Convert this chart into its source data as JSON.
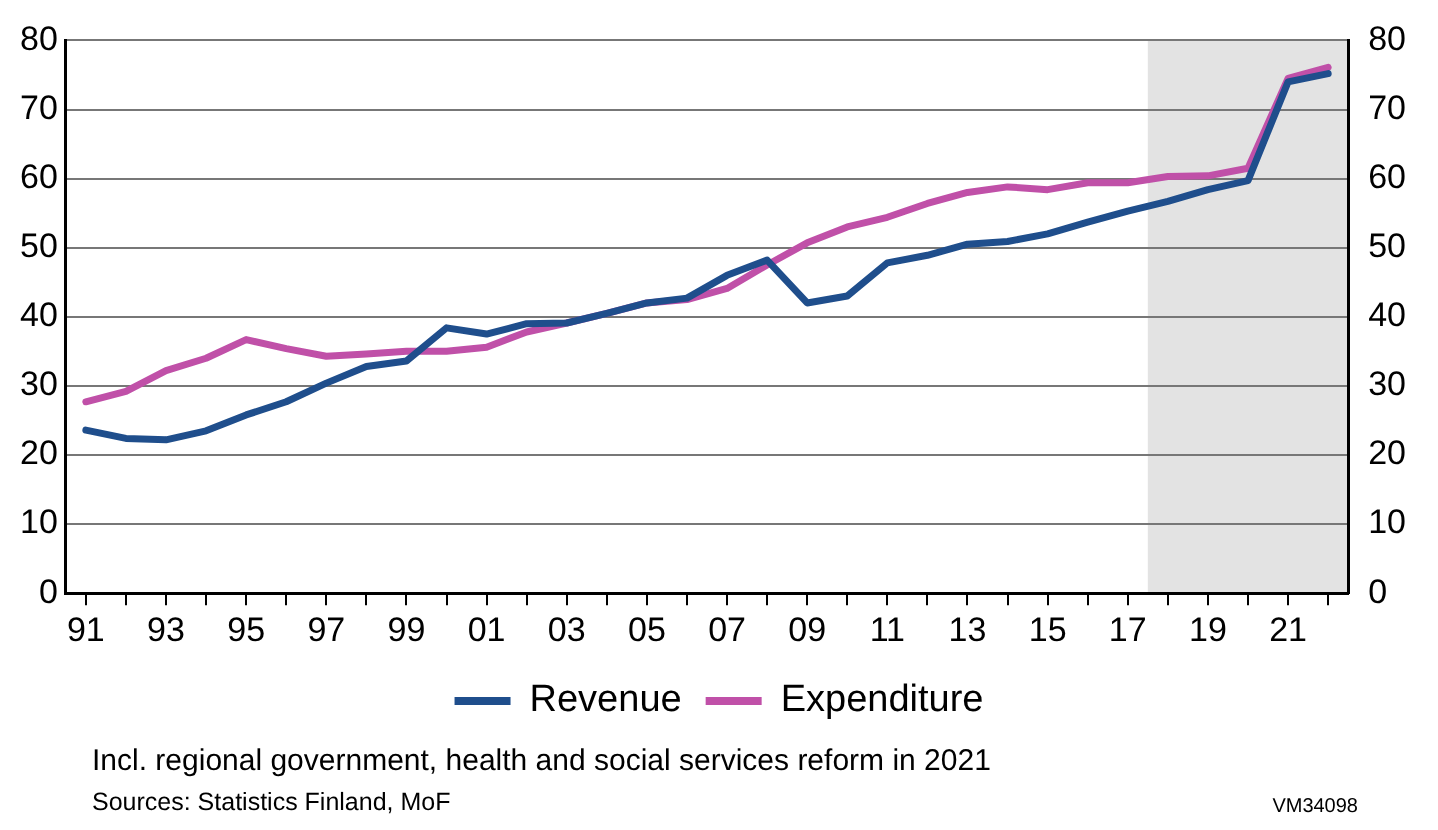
{
  "chart_data": {
    "type": "line",
    "x": [
      1991,
      1992,
      1993,
      1994,
      1995,
      1996,
      1997,
      1998,
      1999,
      2000,
      2001,
      2002,
      2003,
      2004,
      2005,
      2006,
      2007,
      2008,
      2009,
      2010,
      2011,
      2012,
      2013,
      2014,
      2015,
      2016,
      2017,
      2018,
      2019,
      2020,
      2021,
      2022
    ],
    "series": [
      {
        "name": "Revenue",
        "color": "#1f4e8c",
        "values": [
          23.6,
          22.4,
          22.2,
          23.5,
          25.8,
          27.7,
          30.4,
          32.8,
          33.6,
          38.4,
          37.5,
          39.0,
          39.1,
          40.5,
          42.0,
          42.7,
          46.0,
          48.2,
          42.0,
          43.0,
          47.8,
          48.9,
          50.5,
          50.9,
          52.0,
          53.7,
          55.3,
          56.7,
          58.4,
          59.7,
          74.0,
          75.2
        ]
      },
      {
        "name": "Expenditure",
        "color": "#c050a8",
        "values": [
          27.7,
          29.2,
          32.2,
          34.0,
          36.7,
          35.4,
          34.3,
          34.6,
          35.0,
          35.0,
          35.6,
          37.8,
          39.1,
          40.5,
          42.0,
          42.5,
          44.1,
          47.5,
          50.7,
          53.0,
          54.4,
          56.4,
          58.0,
          58.8,
          58.4,
          59.4,
          59.4,
          60.3,
          60.4,
          61.5,
          74.5,
          76.1
        ]
      }
    ],
    "xlim": [
      1990.5,
      2022.5
    ],
    "xticks": [
      {
        "value": 1991,
        "label": "91"
      },
      {
        "value": 1992,
        "label": null
      },
      {
        "value": 1993,
        "label": "93"
      },
      {
        "value": 1994,
        "label": null
      },
      {
        "value": 1995,
        "label": "95"
      },
      {
        "value": 1996,
        "label": null
      },
      {
        "value": 1997,
        "label": "97"
      },
      {
        "value": 1998,
        "label": null
      },
      {
        "value": 1999,
        "label": "99"
      },
      {
        "value": 2000,
        "label": null
      },
      {
        "value": 2001,
        "label": "01"
      },
      {
        "value": 2002,
        "label": null
      },
      {
        "value": 2003,
        "label": "03"
      },
      {
        "value": 2004,
        "label": null
      },
      {
        "value": 2005,
        "label": "05"
      },
      {
        "value": 2006,
        "label": null
      },
      {
        "value": 2007,
        "label": "07"
      },
      {
        "value": 2008,
        "label": null
      },
      {
        "value": 2009,
        "label": "09"
      },
      {
        "value": 2010,
        "label": null
      },
      {
        "value": 2011,
        "label": "11"
      },
      {
        "value": 2012,
        "label": null
      },
      {
        "value": 2013,
        "label": "13"
      },
      {
        "value": 2014,
        "label": null
      },
      {
        "value": 2015,
        "label": "15"
      },
      {
        "value": 2016,
        "label": null
      },
      {
        "value": 2017,
        "label": "17"
      },
      {
        "value": 2018,
        "label": null
      },
      {
        "value": 2019,
        "label": "19"
      },
      {
        "value": 2020,
        "label": null
      },
      {
        "value": 2021,
        "label": "21"
      },
      {
        "value": 2022,
        "label": null
      }
    ],
    "ylim": [
      0,
      80
    ],
    "yticks": [
      0,
      10,
      20,
      30,
      40,
      50,
      60,
      70,
      80
    ],
    "y2lim": [
      0,
      80
    ],
    "y2ticks": [
      0,
      10,
      20,
      30,
      40,
      50,
      60,
      70,
      80
    ],
    "bands": [
      {
        "axis": "x",
        "from": 2017.5,
        "to": 2022.5,
        "color": "#e3e3e3"
      }
    ],
    "grid": "y",
    "legend": "bottom",
    "marker": "none",
    "line_style": "solid",
    "annotations": [
      "Incl. regional government, health and social services reform in 2021",
      "Sources: Statistics Finland, MoF",
      "VM34098"
    ]
  }
}
